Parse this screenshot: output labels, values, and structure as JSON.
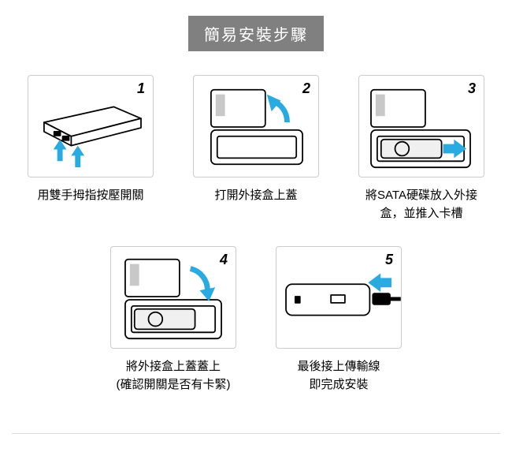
{
  "title": "簡易安裝步驟",
  "title_bg": "#808080",
  "title_color": "#ffffff",
  "arrow_color": "#29abe2",
  "line_color": "#000000",
  "box_border": "#cccccc",
  "light_fill": "#f7f7f7",
  "steps": [
    {
      "num": "1",
      "caption": "用雙手拇指按壓開關"
    },
    {
      "num": "2",
      "caption": "打開外接盒上蓋"
    },
    {
      "num": "3",
      "caption": "將SATA硬碟放入外接盒，並推入卡槽"
    },
    {
      "num": "4",
      "caption": "將外接盒上蓋蓋上\n(確認開關是否有卡緊)"
    },
    {
      "num": "5",
      "caption": "最後接上傳輸線\n即完成安裝"
    }
  ]
}
